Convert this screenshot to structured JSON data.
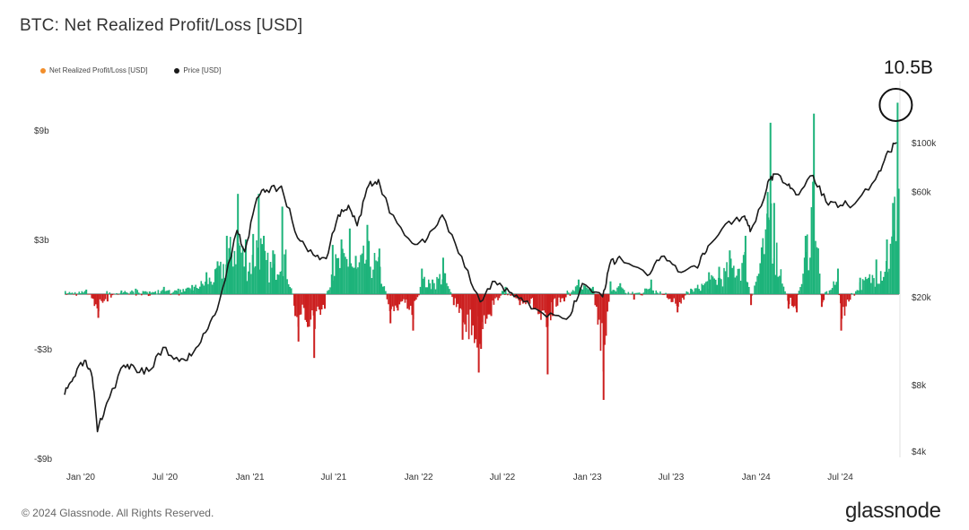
{
  "title": "BTC: Net Realized Profit/Loss [USD]",
  "callout": "10.5B",
  "footer": {
    "copyright": "© 2024 Glassnode. All Rights Reserved.",
    "brand": "glassnode"
  },
  "colors": {
    "profit": "#1db37a",
    "loss": "#cc1f1f",
    "price": "#1a1a1a",
    "legend_npl": "#f28e2b",
    "zero_line": "#444444"
  },
  "chart_data": {
    "type": "bar",
    "title": "BTC: Net Realized Profit/Loss [USD]",
    "legend": [
      {
        "name": "Net Realized Profit/Loss [USD]",
        "color": "#f28e2b"
      },
      {
        "name": "Price [USD]",
        "color": "#1a1a1a"
      }
    ],
    "legend_placement": "top-left",
    "x_ticks": [
      "Jan '20",
      "Jul '20",
      "Jan '21",
      "Jul '21",
      "Jan '22",
      "Jul '22",
      "Jan '23",
      "Jul '23",
      "Jan '24",
      "Jul '24"
    ],
    "x_range": [
      "2020-01-01",
      "2024-12-10"
    ],
    "y_left": {
      "ticks": [
        "$9b",
        "$3b",
        "-$3b",
        "-$9b"
      ],
      "tick_values": [
        9,
        3,
        -3,
        -9
      ],
      "range": [
        -9,
        9
      ],
      "unit": "billion USD"
    },
    "y_right": {
      "ticks": [
        "$100k",
        "$60k",
        "$20k",
        "$8k",
        "$4k"
      ],
      "tick_values": [
        100000,
        60000,
        20000,
        8000,
        4000
      ],
      "scale": "log",
      "range": [
        4000,
        100000
      ]
    },
    "grid": false,
    "series": [
      {
        "name": "Net Realized Profit/Loss [USD]",
        "axis": "left",
        "unit": "billion USD",
        "points": [
          [
            "2020-01-01",
            0.05
          ],
          [
            "2020-02-15",
            0.25
          ],
          [
            "2020-03-12",
            -1.3
          ],
          [
            "2020-04-01",
            -0.4
          ],
          [
            "2020-05-01",
            0.2
          ],
          [
            "2020-06-01",
            0.3
          ],
          [
            "2020-07-01",
            0.15
          ],
          [
            "2020-08-01",
            0.4
          ],
          [
            "2020-09-01",
            0.3
          ],
          [
            "2020-10-01",
            0.5
          ],
          [
            "2020-11-01",
            1.2
          ],
          [
            "2020-11-25",
            1.8
          ],
          [
            "2020-12-15",
            3.2
          ],
          [
            "2021-01-08",
            5.5
          ],
          [
            "2021-01-25",
            3.0
          ],
          [
            "2021-02-10",
            3.3
          ],
          [
            "2021-02-22",
            5.5
          ],
          [
            "2021-03-05",
            3.2
          ],
          [
            "2021-03-25",
            2.4
          ],
          [
            "2021-04-14",
            4.8
          ],
          [
            "2021-05-12",
            -1.2
          ],
          [
            "2021-05-19",
            -2.6
          ],
          [
            "2021-06-08",
            -1.8
          ],
          [
            "2021-06-22",
            -3.5
          ],
          [
            "2021-07-15",
            -0.8
          ],
          [
            "2021-08-01",
            2.7
          ],
          [
            "2021-08-20",
            3.0
          ],
          [
            "2021-09-07",
            3.6
          ],
          [
            "2021-09-20",
            2.1
          ],
          [
            "2021-10-15",
            3.8
          ],
          [
            "2021-11-10",
            2.5
          ],
          [
            "2021-12-04",
            -1.6
          ],
          [
            "2021-12-20",
            -0.9
          ],
          [
            "2022-01-10",
            -0.8
          ],
          [
            "2022-01-22",
            -2.0
          ],
          [
            "2022-02-10",
            1.4
          ],
          [
            "2022-03-05",
            0.8
          ],
          [
            "2022-03-28",
            2.0
          ],
          [
            "2022-04-20",
            -0.6
          ],
          [
            "2022-05-09",
            -2.5
          ],
          [
            "2022-06-13",
            -4.3
          ],
          [
            "2022-06-18",
            -3.0
          ],
          [
            "2022-07-10",
            -1.2
          ],
          [
            "2022-08-10",
            0.4
          ],
          [
            "2022-09-10",
            -0.6
          ],
          [
            "2022-10-10",
            -0.8
          ],
          [
            "2022-11-09",
            -4.4
          ],
          [
            "2022-11-20",
            -1.2
          ],
          [
            "2022-12-15",
            -0.4
          ],
          [
            "2023-01-15",
            0.8
          ],
          [
            "2023-02-15",
            0.4
          ],
          [
            "2023-03-10",
            -5.8
          ],
          [
            "2023-03-25",
            0.7
          ],
          [
            "2023-04-15",
            0.6
          ],
          [
            "2023-05-15",
            -0.3
          ],
          [
            "2023-06-21",
            0.8
          ],
          [
            "2023-08-17",
            -1.0
          ],
          [
            "2023-09-15",
            0.3
          ],
          [
            "2023-10-24",
            1.2
          ],
          [
            "2023-11-15",
            1.5
          ],
          [
            "2023-12-08",
            2.4
          ],
          [
            "2024-01-11",
            3.2
          ],
          [
            "2024-01-23",
            -0.6
          ],
          [
            "2024-02-28",
            5.6
          ],
          [
            "2024-03-05",
            9.4
          ],
          [
            "2024-03-13",
            5.0
          ],
          [
            "2024-04-13",
            -0.8
          ],
          [
            "2024-05-01",
            -1.0
          ],
          [
            "2024-05-20",
            3.2
          ],
          [
            "2024-06-07",
            9.9
          ],
          [
            "2024-06-24",
            -0.7
          ],
          [
            "2024-07-29",
            1.4
          ],
          [
            "2024-08-05",
            -2.0
          ],
          [
            "2024-09-15",
            0.9
          ],
          [
            "2024-10-20",
            1.9
          ],
          [
            "2024-11-12",
            3.0
          ],
          [
            "2024-11-25",
            5.0
          ],
          [
            "2024-12-05",
            10.5
          ]
        ]
      },
      {
        "name": "Price [USD]",
        "axis": "right",
        "unit": "USD",
        "points": [
          [
            "2020-01-01",
            7200
          ],
          [
            "2020-01-20",
            8600
          ],
          [
            "2020-02-13",
            10300
          ],
          [
            "2020-03-01",
            8600
          ],
          [
            "2020-03-12",
            4900
          ],
          [
            "2020-04-01",
            6600
          ],
          [
            "2020-05-08",
            9800
          ],
          [
            "2020-06-01",
            9500
          ],
          [
            "2020-07-01",
            9200
          ],
          [
            "2020-08-01",
            11800
          ],
          [
            "2020-09-05",
            10200
          ],
          [
            "2020-10-01",
            10800
          ],
          [
            "2020-11-01",
            13800
          ],
          [
            "2020-12-01",
            19200
          ],
          [
            "2021-01-08",
            40000
          ],
          [
            "2021-01-25",
            32000
          ],
          [
            "2021-02-20",
            56000
          ],
          [
            "2021-03-13",
            61000
          ],
          [
            "2021-04-14",
            63500
          ],
          [
            "2021-05-19",
            37000
          ],
          [
            "2021-06-22",
            31000
          ],
          [
            "2021-07-20",
            29800
          ],
          [
            "2021-08-15",
            47000
          ],
          [
            "2021-09-06",
            52000
          ],
          [
            "2021-09-25",
            42000
          ],
          [
            "2021-10-20",
            64000
          ],
          [
            "2021-11-10",
            68000
          ],
          [
            "2021-12-04",
            48000
          ],
          [
            "2022-01-22",
            35000
          ],
          [
            "2022-02-24",
            37000
          ],
          [
            "2022-03-28",
            47000
          ],
          [
            "2022-05-09",
            30500
          ],
          [
            "2022-06-18",
            19000
          ],
          [
            "2022-07-20",
            23500
          ],
          [
            "2022-08-20",
            21000
          ],
          [
            "2022-09-20",
            19000
          ],
          [
            "2022-11-09",
            16200
          ],
          [
            "2022-12-30",
            16500
          ],
          [
            "2023-01-25",
            23000
          ],
          [
            "2023-03-10",
            20000
          ],
          [
            "2023-03-25",
            28000
          ],
          [
            "2023-04-15",
            30500
          ],
          [
            "2023-06-15",
            25000
          ],
          [
            "2023-07-15",
            30500
          ],
          [
            "2023-08-20",
            26000
          ],
          [
            "2023-10-01",
            27000
          ],
          [
            "2023-10-24",
            34000
          ],
          [
            "2023-12-08",
            44000
          ],
          [
            "2024-01-11",
            46500
          ],
          [
            "2024-01-23",
            39500
          ],
          [
            "2024-02-28",
            62000
          ],
          [
            "2024-03-13",
            72000
          ],
          [
            "2024-04-13",
            64000
          ],
          [
            "2024-05-01",
            58000
          ],
          [
            "2024-06-07",
            71000
          ],
          [
            "2024-07-05",
            54000
          ],
          [
            "2024-08-05",
            52000
          ],
          [
            "2024-09-06",
            53000
          ],
          [
            "2024-10-20",
            68000
          ],
          [
            "2024-11-12",
            88000
          ],
          [
            "2024-12-05",
            100000
          ]
        ]
      }
    ]
  }
}
